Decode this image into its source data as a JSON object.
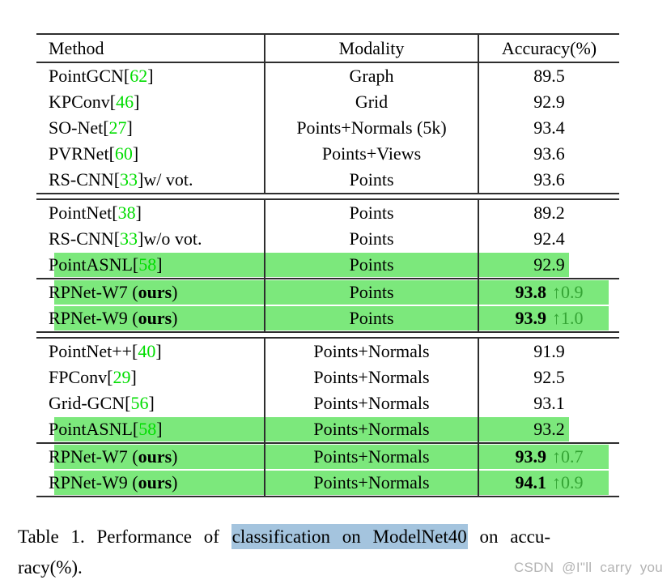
{
  "table": {
    "headers": [
      "Method",
      "Modality",
      "Accuracy(%)"
    ],
    "cite_open": "[",
    "cite_close": "]",
    "sections": [
      {
        "rows": [
          {
            "pre": "PointGCN ",
            "cite": "62",
            "post": "",
            "modality": "Graph",
            "acc": "89.5"
          },
          {
            "pre": "KPConv ",
            "cite": "46",
            "post": "",
            "modality": "Grid",
            "acc": "92.9"
          },
          {
            "pre": "SO-Net ",
            "cite": "27",
            "post": "",
            "modality": "Points+Normals (5k)",
            "acc": "93.4"
          },
          {
            "pre": "PVRNet ",
            "cite": "60",
            "post": "",
            "modality": "Points+Views",
            "acc": "93.6"
          },
          {
            "pre": "RS-CNN ",
            "cite": "33",
            "post": " w/ vot.",
            "modality": "Points",
            "acc": "93.6"
          }
        ]
      },
      {
        "rows": [
          {
            "pre": "PointNet ",
            "cite": "38",
            "post": "",
            "modality": "Points",
            "acc": "89.2"
          },
          {
            "pre": "RS-CNN ",
            "cite": "33",
            "post": " w/o vot.",
            "modality": "Points",
            "acc": "92.4"
          },
          {
            "pre": "PointASNL ",
            "cite": "58",
            "post": "",
            "modality": "Points",
            "acc": "92.9",
            "highlight": "short"
          },
          {
            "pre": "RPNet-W7 (",
            "bold": "ours",
            "post": ")",
            "modality": "Points",
            "acc": "93.8",
            "acc_bold": true,
            "delta": "↑0.9",
            "highlight": "long",
            "line_above": true
          },
          {
            "pre": "RPNet-W9 (",
            "bold": "ours",
            "post": ")",
            "modality": "Points",
            "acc": "93.9",
            "acc_bold": true,
            "delta": "↑1.0",
            "highlight": "long"
          }
        ]
      },
      {
        "rows": [
          {
            "pre": "PointNet++ ",
            "cite": "40",
            "post": "",
            "modality": "Points+Normals",
            "acc": "91.9"
          },
          {
            "pre": "FPConv ",
            "cite": "29",
            "post": "",
            "modality": "Points+Normals",
            "acc": "92.5"
          },
          {
            "pre": "Grid-GCN ",
            "cite": "56",
            "post": "",
            "modality": "Points+Normals",
            "acc": "93.1"
          },
          {
            "pre": "PointASNL ",
            "cite": "58",
            "post": "",
            "modality": "Points+Normals",
            "acc": "93.2",
            "highlight": "short"
          },
          {
            "pre": "RPNet-W7 (",
            "bold": "ours",
            "post": ")",
            "modality": "Points+Normals",
            "acc": "93.9",
            "acc_bold": true,
            "delta": "↑0.7",
            "highlight": "long",
            "line_above": true
          },
          {
            "pre": "RPNet-W9 (",
            "bold": "ours",
            "post": ")",
            "modality": "Points+Normals",
            "acc": "94.1",
            "acc_bold": true,
            "delta": "↑0.9",
            "highlight": "long"
          }
        ]
      }
    ]
  },
  "caption": {
    "line1_pre": "Table 1. Performance of ",
    "line1_highlight": "classification on ModelNet40",
    "line1_post": " on accu-",
    "line2": "racy(%)."
  },
  "watermark": "CSDN @I\"ll carry you",
  "colors": {
    "citation_green": "#00dd00",
    "highlight_green": "#7ce87c",
    "delta_green": "#35a435",
    "caption_highlight_blue": "#a4c4de",
    "table_line": "#2e2e2e",
    "watermark_gray": "#b3b3b3"
  }
}
